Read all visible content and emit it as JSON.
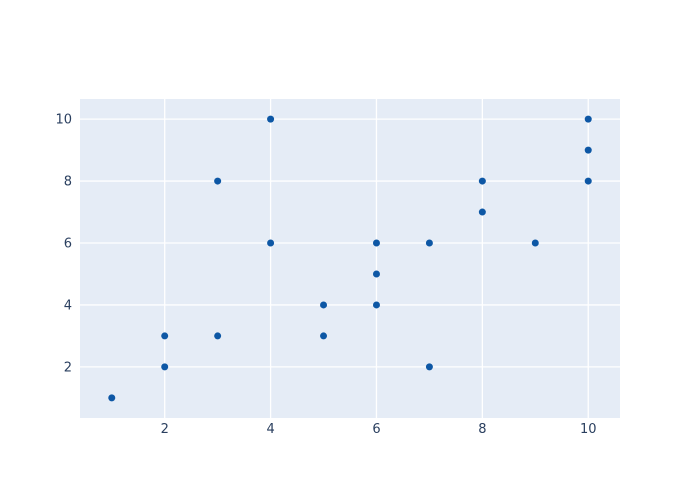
{
  "chart_data": {
    "type": "scatter",
    "title": "",
    "xlabel": "",
    "ylabel": "",
    "points": [
      [
        1,
        1
      ],
      [
        2,
        2
      ],
      [
        2,
        3
      ],
      [
        3,
        3
      ],
      [
        3,
        8
      ],
      [
        4,
        6
      ],
      [
        4,
        10
      ],
      [
        5,
        3
      ],
      [
        5,
        4
      ],
      [
        6,
        4
      ],
      [
        6,
        5
      ],
      [
        6,
        6
      ],
      [
        7,
        2
      ],
      [
        7,
        6
      ],
      [
        8,
        7
      ],
      [
        8,
        8
      ],
      [
        9,
        6
      ],
      [
        10,
        8
      ],
      [
        10,
        9
      ],
      [
        10,
        10
      ]
    ],
    "x_ticks": [
      2,
      4,
      6,
      8,
      10
    ],
    "y_ticks": [
      2,
      4,
      6,
      8,
      10
    ],
    "x_tick_labels": [
      "2",
      "4",
      "6",
      "8",
      "10"
    ],
    "y_tick_labels": [
      "2",
      "4",
      "6",
      "8",
      "10"
    ],
    "xlim": [
      0.4,
      10.6
    ],
    "ylim": [
      0.35,
      10.65
    ],
    "grid": true,
    "legend": false,
    "marker_radius": 3.5,
    "colors": {
      "paper_bg": "#ffffff",
      "plot_bg": "#e5ecf6",
      "gridline": "#ffffff",
      "marker": "#0d57a5",
      "tick_label": "#2a3f5f"
    }
  }
}
